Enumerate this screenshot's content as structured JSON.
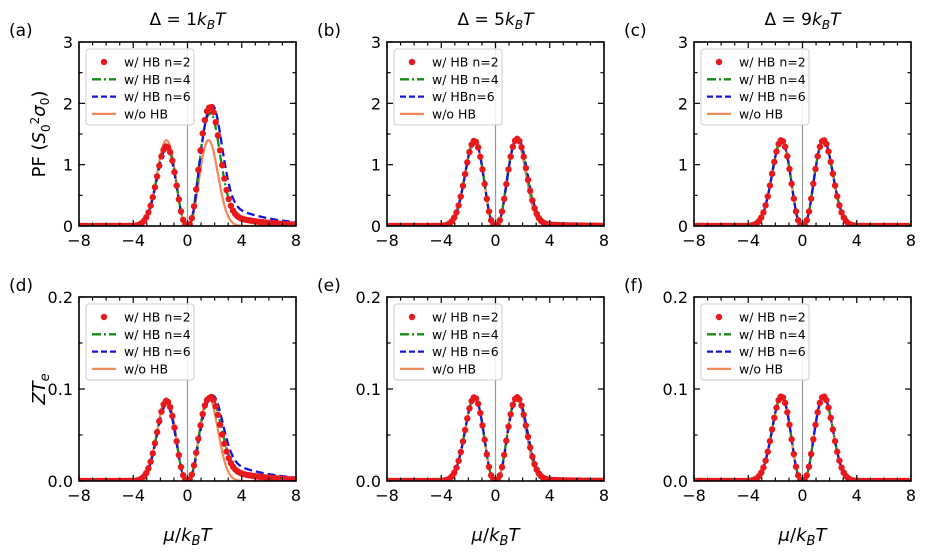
{
  "figure": {
    "column_titles": [
      "Δ = 1k_BT",
      "Δ = 5k_BT",
      "Δ = 9k_BT"
    ],
    "shared_xlabel": "μ/k_BT",
    "row_ylabels": [
      "PF (S_0^2σ_0)",
      "ZT_e"
    ]
  },
  "colors": {
    "n2": "#e8191c",
    "n4": "#1b8a1b",
    "n6": "#1515d8",
    "woHB": "#f08a5d",
    "zero_line": "#999999"
  },
  "chart_data": [
    {
      "id": "a",
      "label": "(a)",
      "type": "line",
      "row": 0,
      "col": 0,
      "delta": 1,
      "xlabel": "μ/k_BT",
      "ylabel": "PF (S_0^2σ_0)",
      "xlim": [
        -8,
        8
      ],
      "ylim": [
        0,
        3
      ],
      "xticks": [
        -8,
        -4,
        0,
        4,
        8
      ],
      "xtick_labels": [
        "−8",
        "−4",
        "0",
        "4",
        "8"
      ],
      "yticks": [
        0,
        1,
        2,
        3
      ],
      "ytick_labels": [
        "0",
        "1",
        "2",
        "3"
      ],
      "legend": [
        "w/ HB n=2",
        "w/ HB n=4",
        "w/ HB n=6",
        "w/o HB"
      ],
      "series": [
        {
          "name": "w/ HB n=2",
          "style": "dots",
          "params": {
            "l_amp": 1.3,
            "r_amp": 1.93,
            "l_pos": -1.55,
            "r_pos": 1.62,
            "l_w": 1.0,
            "r_w": 1.04,
            "r_tail": 0.32,
            "tail_len": 2.4
          }
        },
        {
          "name": "w/ HB n=4",
          "style": "dashdot",
          "params": {
            "l_amp": 1.31,
            "r_amp": 1.82,
            "l_pos": -1.55,
            "r_pos": 1.6,
            "l_w": 1.0,
            "r_w": 1.04,
            "r_tail": 0.38,
            "tail_len": 2.5
          }
        },
        {
          "name": "w/ HB n=6",
          "style": "dashed",
          "params": {
            "l_amp": 1.27,
            "r_amp": 1.92,
            "l_pos": -1.55,
            "r_pos": 1.7,
            "l_w": 1.0,
            "r_w": 1.08,
            "r_tail": 0.58,
            "tail_len": 2.8
          }
        },
        {
          "name": "w/o HB",
          "style": "solid",
          "params": {
            "l_amp": 1.4,
            "r_amp": 1.4,
            "l_pos": -1.55,
            "r_pos": 1.55,
            "l_w": 0.98,
            "r_w": 0.98,
            "r_tail": 0.0,
            "tail_len": 1.0
          }
        }
      ]
    },
    {
      "id": "b",
      "label": "(b)",
      "type": "line",
      "row": 0,
      "col": 1,
      "delta": 5,
      "xlabel": "μ/k_BT",
      "ylabel": "PF (S_0^2σ_0)",
      "xlim": [
        -8,
        8
      ],
      "ylim": [
        0,
        3
      ],
      "xticks": [
        -8,
        -4,
        0,
        4,
        8
      ],
      "xtick_labels": [
        "−8",
        "−4",
        "0",
        "4",
        "8"
      ],
      "yticks": [
        0,
        1,
        2,
        3
      ],
      "ytick_labels": [
        "0",
        "1",
        "2",
        "3"
      ],
      "legend": [
        "w/ HB n=2",
        "w/ HB n=4",
        "w/ HBn=6",
        "w/o HB"
      ],
      "series": [
        {
          "name": "w/ HB n=2",
          "style": "dots",
          "params": {
            "l_amp": 1.39,
            "r_amp": 1.42,
            "l_pos": -1.55,
            "r_pos": 1.58,
            "l_w": 0.98,
            "r_w": 1.0,
            "r_tail": 0.07,
            "tail_len": 2.0
          }
        },
        {
          "name": "w/ HB n=4",
          "style": "dashdot",
          "params": {
            "l_amp": 1.39,
            "r_amp": 1.43,
            "l_pos": -1.55,
            "r_pos": 1.58,
            "l_w": 0.98,
            "r_w": 1.0,
            "r_tail": 0.09,
            "tail_len": 2.2
          }
        },
        {
          "name": "w/ HBn=6",
          "style": "dashed",
          "params": {
            "l_amp": 1.39,
            "r_amp": 1.44,
            "l_pos": -1.55,
            "r_pos": 1.6,
            "l_w": 0.98,
            "r_w": 1.0,
            "r_tail": 0.12,
            "tail_len": 2.4
          }
        },
        {
          "name": "w/o HB",
          "style": "solid",
          "params": {
            "l_amp": 1.4,
            "r_amp": 1.4,
            "l_pos": -1.55,
            "r_pos": 1.55,
            "l_w": 0.98,
            "r_w": 0.98,
            "r_tail": 0.0,
            "tail_len": 1.0
          }
        }
      ]
    },
    {
      "id": "c",
      "label": "(c)",
      "type": "line",
      "row": 0,
      "col": 2,
      "delta": 9,
      "xlabel": "μ/k_BT",
      "ylabel": "PF (S_0^2σ_0)",
      "xlim": [
        -8,
        8
      ],
      "ylim": [
        0,
        3
      ],
      "xticks": [
        -8,
        -4,
        0,
        4,
        8
      ],
      "xtick_labels": [
        "−8",
        "−4",
        "0",
        "4",
        "8"
      ],
      "yticks": [
        0,
        1,
        2,
        3
      ],
      "ytick_labels": [
        "0",
        "1",
        "2",
        "3"
      ],
      "legend": [
        "w/ HB n=2",
        "w/ HB n=4",
        "w/ HB n=6",
        "w/o HB"
      ],
      "series": [
        {
          "name": "w/ HB n=2",
          "style": "dots",
          "params": {
            "l_amp": 1.4,
            "r_amp": 1.4,
            "l_pos": -1.55,
            "r_pos": 1.55,
            "l_w": 0.98,
            "r_w": 0.98,
            "r_tail": 0.0,
            "tail_len": 1.0
          }
        },
        {
          "name": "w/ HB n=4",
          "style": "dashdot",
          "params": {
            "l_amp": 1.4,
            "r_amp": 1.4,
            "l_pos": -1.55,
            "r_pos": 1.55,
            "l_w": 0.98,
            "r_w": 0.98,
            "r_tail": 0.0,
            "tail_len": 1.0
          }
        },
        {
          "name": "w/ HB n=6",
          "style": "dashed",
          "params": {
            "l_amp": 1.4,
            "r_amp": 1.4,
            "l_pos": -1.55,
            "r_pos": 1.55,
            "l_w": 0.98,
            "r_w": 0.98,
            "r_tail": 0.0,
            "tail_len": 1.0
          }
        },
        {
          "name": "w/o HB",
          "style": "solid",
          "params": {
            "l_amp": 1.4,
            "r_amp": 1.4,
            "l_pos": -1.55,
            "r_pos": 1.55,
            "l_w": 0.98,
            "r_w": 0.98,
            "r_tail": 0.0,
            "tail_len": 1.0
          }
        }
      ]
    },
    {
      "id": "d",
      "label": "(d)",
      "type": "line",
      "row": 1,
      "col": 0,
      "delta": 1,
      "xlabel": "μ/k_BT",
      "ylabel": "ZT_e",
      "xlim": [
        -8,
        8
      ],
      "ylim": [
        0,
        0.2
      ],
      "xticks": [
        -8,
        -4,
        0,
        4,
        8
      ],
      "xtick_labels": [
        "−8",
        "−4",
        "0",
        "4",
        "8"
      ],
      "yticks": [
        0,
        0.1,
        0.2
      ],
      "ytick_labels": [
        "0.0",
        "0.1",
        "0.2"
      ],
      "legend": [
        "w/ HB n=2",
        "w/ HB n=4",
        "w/ HB n=6",
        "w/o HB"
      ],
      "series": [
        {
          "name": "w/ HB n=2",
          "style": "dots",
          "params": {
            "l_amp": 0.087,
            "r_amp": 0.09,
            "l_pos": -1.55,
            "r_pos": 1.6,
            "l_w": 0.98,
            "r_w": 1.08,
            "r_tail": 0.022,
            "tail_len": 2.4
          }
        },
        {
          "name": "w/ HB n=4",
          "style": "dashdot",
          "params": {
            "l_amp": 0.085,
            "r_amp": 0.089,
            "l_pos": -1.55,
            "r_pos": 1.62,
            "l_w": 0.98,
            "r_w": 1.1,
            "r_tail": 0.026,
            "tail_len": 2.5
          }
        },
        {
          "name": "w/ HB n=6",
          "style": "dashed",
          "params": {
            "l_amp": 0.083,
            "r_amp": 0.089,
            "l_pos": -1.55,
            "r_pos": 1.7,
            "l_w": 0.98,
            "r_w": 1.12,
            "r_tail": 0.035,
            "tail_len": 2.8
          }
        },
        {
          "name": "w/o HB",
          "style": "solid",
          "params": {
            "l_amp": 0.09,
            "r_amp": 0.092,
            "l_pos": -1.55,
            "r_pos": 1.55,
            "l_w": 0.98,
            "r_w": 0.98,
            "r_tail": 0.0,
            "tail_len": 1.0
          }
        }
      ]
    },
    {
      "id": "e",
      "label": "(e)",
      "type": "line",
      "row": 1,
      "col": 1,
      "delta": 5,
      "xlabel": "μ/k_BT",
      "ylabel": "ZT_e",
      "xlim": [
        -8,
        8
      ],
      "ylim": [
        0,
        0.2
      ],
      "xticks": [
        -8,
        -4,
        0,
        4,
        8
      ],
      "xtick_labels": [
        "−8",
        "−4",
        "0",
        "4",
        "8"
      ],
      "yticks": [
        0,
        0.1,
        0.2
      ],
      "ytick_labels": [
        "0.0",
        "0.1",
        "0.2"
      ],
      "legend": [
        "w/ HB n=2",
        "w/ HB n=4",
        "w/ HB n=6",
        "w/o HB"
      ],
      "series": [
        {
          "name": "w/ HB n=2",
          "style": "dots",
          "params": {
            "l_amp": 0.091,
            "r_amp": 0.091,
            "l_pos": -1.55,
            "r_pos": 1.58,
            "l_w": 0.98,
            "r_w": 1.0,
            "r_tail": 0.004,
            "tail_len": 2.0
          }
        },
        {
          "name": "w/ HB n=4",
          "style": "dashdot",
          "params": {
            "l_amp": 0.091,
            "r_amp": 0.091,
            "l_pos": -1.55,
            "r_pos": 1.58,
            "l_w": 0.98,
            "r_w": 1.0,
            "r_tail": 0.005,
            "tail_len": 2.2
          }
        },
        {
          "name": "w/ HB n=6",
          "style": "dashed",
          "params": {
            "l_amp": 0.091,
            "r_amp": 0.091,
            "l_pos": -1.55,
            "r_pos": 1.6,
            "l_w": 0.98,
            "r_w": 1.0,
            "r_tail": 0.006,
            "tail_len": 2.4
          }
        },
        {
          "name": "w/o HB",
          "style": "solid",
          "params": {
            "l_amp": 0.091,
            "r_amp": 0.091,
            "l_pos": -1.55,
            "r_pos": 1.55,
            "l_w": 0.98,
            "r_w": 0.98,
            "r_tail": 0.0,
            "tail_len": 1.0
          }
        }
      ]
    },
    {
      "id": "f",
      "label": "(f)",
      "type": "line",
      "row": 1,
      "col": 2,
      "delta": 9,
      "xlabel": "μ/k_BT",
      "ylabel": "ZT_e",
      "xlim": [
        -8,
        8
      ],
      "ylim": [
        0,
        0.2
      ],
      "xticks": [
        -8,
        -4,
        0,
        4,
        8
      ],
      "xtick_labels": [
        "−8",
        "−4",
        "0",
        "4",
        "8"
      ],
      "yticks": [
        0,
        0.1,
        0.2
      ],
      "ytick_labels": [
        "0.0",
        "0.1",
        "0.2"
      ],
      "legend": [
        "w/ HB n=2",
        "w/ HB n=4",
        "w/ HB n=6",
        "w/o HB"
      ],
      "series": [
        {
          "name": "w/ HB n=2",
          "style": "dots",
          "params": {
            "l_amp": 0.092,
            "r_amp": 0.092,
            "l_pos": -1.55,
            "r_pos": 1.55,
            "l_w": 0.98,
            "r_w": 0.98,
            "r_tail": 0.0,
            "tail_len": 1.0
          }
        },
        {
          "name": "w/ HB n=4",
          "style": "dashdot",
          "params": {
            "l_amp": 0.092,
            "r_amp": 0.092,
            "l_pos": -1.55,
            "r_pos": 1.55,
            "l_w": 0.98,
            "r_w": 0.98,
            "r_tail": 0.0,
            "tail_len": 1.0
          }
        },
        {
          "name": "w/ HB n=6",
          "style": "dashed",
          "params": {
            "l_amp": 0.092,
            "r_amp": 0.092,
            "l_pos": -1.55,
            "r_pos": 1.55,
            "l_w": 0.98,
            "r_w": 0.98,
            "r_tail": 0.0,
            "tail_len": 1.0
          }
        },
        {
          "name": "w/o HB",
          "style": "solid",
          "params": {
            "l_amp": 0.092,
            "r_amp": 0.092,
            "l_pos": -1.55,
            "r_pos": 1.55,
            "l_w": 0.98,
            "r_w": 0.98,
            "r_tail": 0.0,
            "tail_len": 1.0
          }
        }
      ]
    }
  ]
}
